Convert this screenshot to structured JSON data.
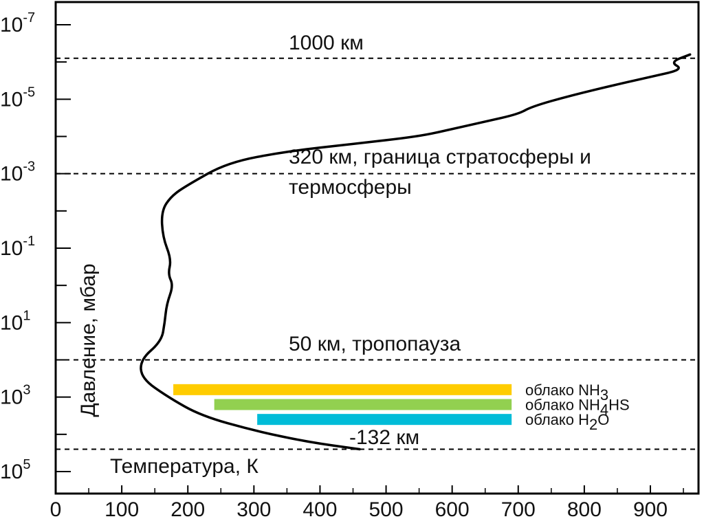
{
  "chart_data": {
    "type": "line",
    "title": "",
    "xlabel": "Температура, К",
    "ylabel": "Давление, мбар",
    "xlim": [
      0,
      970
    ],
    "ylim_log10": [
      -7.5,
      6.0
    ],
    "y_scale": "log",
    "y_inverted": true,
    "x_ticks": [
      0,
      100,
      200,
      300,
      400,
      500,
      600,
      700,
      800,
      900
    ],
    "y_ticks": [
      {
        "exp": -7,
        "base": "10",
        "sup": "-7"
      },
      {
        "exp": -5,
        "base": "10",
        "sup": "-5"
      },
      {
        "exp": -3,
        "base": "10",
        "sup": "-3"
      },
      {
        "exp": -1,
        "base": "10",
        "sup": "-1"
      },
      {
        "exp": 1,
        "base": "10",
        "sup": "1"
      },
      {
        "exp": 3,
        "base": "10",
        "sup": "3"
      },
      {
        "exp": 5,
        "base": "10",
        "sup": "5"
      }
    ],
    "y_minor_ticks": [
      -8,
      -6,
      -4,
      -2,
      0,
      2,
      4
    ],
    "series": [
      {
        "color": "#000000",
        "points": [
          [
            460,
            4.4
          ],
          [
            380,
            4.2
          ],
          [
            300,
            3.9
          ],
          [
            220,
            3.5
          ],
          [
            170,
            3.0
          ],
          [
            130,
            2.5
          ],
          [
            128,
            2.0
          ],
          [
            160,
            1.5
          ],
          [
            165,
            1.0
          ],
          [
            168,
            0.5
          ],
          [
            178,
            0.0
          ],
          [
            170,
            -0.3
          ],
          [
            175,
            -0.7
          ],
          [
            162,
            -1.3
          ],
          [
            160,
            -2.0
          ],
          [
            175,
            -2.4
          ],
          [
            200,
            -2.7
          ],
          [
            260,
            -3.3
          ],
          [
            350,
            -3.6
          ],
          [
            450,
            -3.8
          ],
          [
            550,
            -4.0
          ],
          [
            600,
            -4.2
          ],
          [
            650,
            -4.4
          ],
          [
            700,
            -4.6
          ],
          [
            720,
            -4.8
          ],
          [
            780,
            -5.1
          ],
          [
            850,
            -5.4
          ],
          [
            900,
            -5.6
          ],
          [
            950,
            -5.8
          ],
          [
            930,
            -6.0
          ],
          [
            960,
            -6.2
          ]
        ]
      }
    ],
    "reference_lines": [
      {
        "exp": -6.1,
        "label": "1000 км"
      },
      {
        "exp": -3.0,
        "label_lines": [
          "320 км, граница стратосферы и",
          "термосферы"
        ]
      },
      {
        "exp": 2.0,
        "label": "50 км, тропопауза"
      },
      {
        "exp": 4.4,
        "label": "-132 км"
      }
    ],
    "clouds": [
      {
        "label": "облако NH",
        "sub": "3",
        "after": "",
        "x_start": 178,
        "x_end": 690,
        "exp": 2.8,
        "color": "#ffcc00"
      },
      {
        "label": "облако NH",
        "sub": "4",
        "after": "HS",
        "x_start": 240,
        "x_end": 690,
        "exp": 3.2,
        "color": "#92d050"
      },
      {
        "label": "облако H",
        "sub": "2",
        "after": "O",
        "x_start": 305,
        "x_end": 690,
        "exp": 3.6,
        "color": "#00bcd8"
      }
    ],
    "grid": false,
    "legend": "none"
  }
}
